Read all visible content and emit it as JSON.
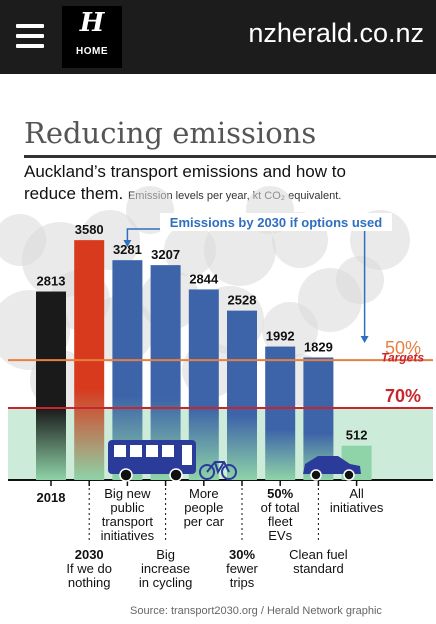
{
  "header": {
    "logo_letter": "H",
    "logo_home": "HOME",
    "site": "nzherald.co.nz"
  },
  "graphic": {
    "title": "Reducing emissions",
    "subtitle_line1": "Auckland’s transport emissions and how to",
    "subtitle_line2": "reduce them.",
    "subtitle_note": "Emission levels per year, kt CO₂ equivalent.",
    "callout": "Emissions by 2030 if options used",
    "source": "Source: transport2030.org / Herald Network graphic"
  },
  "colors": {
    "black_bar": "#1a1a1a",
    "red_bar": "#d83a1e",
    "blue_bar": "#3d64a8",
    "green_base": "#8fd3a8",
    "target_red": "#c8262e",
    "target_orange": "#e7803f",
    "callout_blue": "#2f6fc0"
  },
  "chart_data": {
    "type": "bar",
    "title": "Reducing emissions",
    "ylabel": "Emission levels per year, kt CO₂ equivalent.",
    "ylim": [
      0,
      4000
    ],
    "categories": [
      "2018",
      "2030 If we do nothing",
      "Big new public transport initiatives",
      "Big increase in cycling",
      "More people per car",
      "30% fewer trips",
      "50% of total fleet EVs",
      "Clean fuel standard",
      "All initiatives"
    ],
    "values": [
      2813,
      3580,
      3281,
      3207,
      2844,
      2528,
      1992,
      1829,
      512
    ],
    "value_labels": [
      "2813",
      "3580",
      "3281",
      "3207",
      "2844",
      "2528",
      "1992",
      "1829",
      "512"
    ],
    "labels": [
      {
        "strong": "2018",
        "rest": []
      },
      {
        "strong": "2030",
        "rest": [
          "If we do",
          "nothing"
        ]
      },
      {
        "strong": "",
        "rest": [
          "Big new",
          "public",
          "transport",
          "initiatives"
        ]
      },
      {
        "strong": "",
        "rest": [
          "Big",
          "increase",
          "in cycling"
        ]
      },
      {
        "strong": "",
        "rest": [
          "More",
          "people",
          "per car"
        ]
      },
      {
        "strong": "30%",
        "rest": [
          "fewer",
          "trips"
        ]
      },
      {
        "strong": "50%",
        "rest": [
          "of total",
          "fleet",
          "EVs"
        ]
      },
      {
        "strong": "",
        "rest": [
          "Clean fuel",
          "standard"
        ]
      },
      {
        "strong": "",
        "rest": [
          "All",
          "initiatives"
        ]
      }
    ],
    "targets": {
      "label": "Targets",
      "lines": [
        {
          "label": "50%",
          "value": 1790
        },
        {
          "label": "70%",
          "value": 1074
        }
      ]
    }
  }
}
